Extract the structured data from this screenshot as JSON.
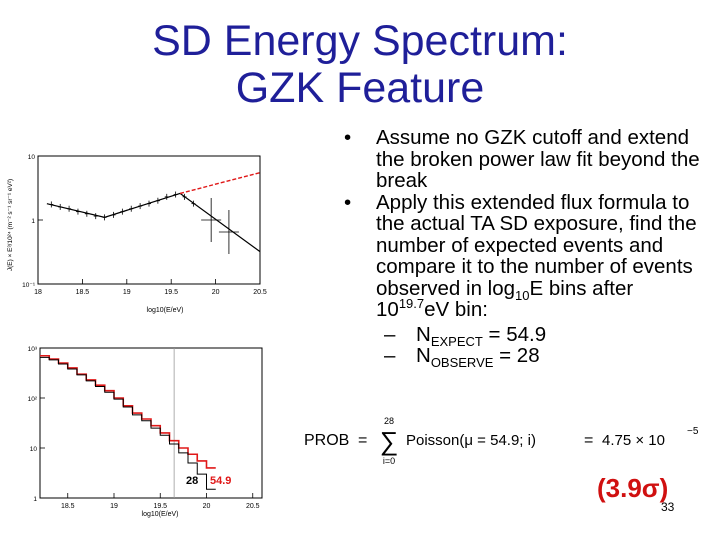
{
  "slide": {
    "title_line1": "SD Energy Spectrum:",
    "title_line2": "GZK Feature",
    "page_number": "33"
  },
  "bullets": {
    "b1": "Assume no GZK cutoff and extend the broken power law fit beyond the break",
    "b2_part1": "Apply this extended flux formula to the actual TA SD exposure, find the number of expected events and compare it to the number of events observed in log",
    "b2_log_sub": "10",
    "b2_part2": "E bins after 10",
    "b2_exp": "19.7",
    "b2_part3": "eV bin:",
    "sub1_label": "N",
    "sub1_sub": "EXPECT",
    "sub1_value": "= 54.9",
    "sub2_label": "N",
    "sub2_sub": "OBSERVE",
    "sub2_value": "= 28"
  },
  "formula": {
    "prob": "PROB",
    "eq1": "=",
    "sum_top": "28",
    "sum_bottom": "i=0",
    "poisson": "Poisson(μ = 54.9; i)",
    "eq2": "=",
    "result": "4.75 × 10",
    "result_exp": "−5"
  },
  "significance": "(3.9σ)",
  "chart_data": [
    {
      "type": "line",
      "xlabel": "log10(E/eV)",
      "ylabel": "J(E) × E³/10²⁴ (m⁻² s⁻¹ sr⁻¹ eV²)",
      "xlim": [
        18,
        20.5
      ],
      "ylim": [
        0.1,
        10
      ],
      "yscale": "log",
      "xticks": [
        "18",
        "18.5",
        "19",
        "19.5",
        "20",
        "20.5"
      ],
      "yticks": [
        "10",
        "1",
        "10⁻¹"
      ],
      "series": [
        {
          "style": "broken power law fit (black)",
          "x": [
            18.1,
            18.75,
            19.6,
            20.5
          ],
          "y": [
            1.8,
            1.1,
            2.6,
            0.32
          ]
        },
        {
          "style": "extension (red dashed)",
          "x": [
            19.6,
            20.5
          ],
          "y": [
            2.6,
            5.5
          ]
        },
        {
          "style": "data points",
          "x": [
            18.15,
            18.25,
            18.35,
            18.45,
            18.55,
            18.65,
            18.75,
            18.85,
            18.95,
            19.05,
            19.15,
            19.25,
            19.35,
            19.45,
            19.55,
            19.65,
            19.75,
            19.95,
            20.15
          ],
          "y": [
            1.75,
            1.6,
            1.5,
            1.35,
            1.25,
            1.15,
            1.1,
            1.2,
            1.35,
            1.5,
            1.65,
            1.8,
            2.0,
            2.3,
            2.5,
            2.3,
            1.8,
            1.0,
            0.65
          ]
        }
      ]
    },
    {
      "type": "line",
      "xlabel": "log10(E/eV)",
      "xlim": [
        18.2,
        20.6
      ],
      "ylim": [
        1,
        1000
      ],
      "yscale": "log",
      "xticks": [
        "18.5",
        "19",
        "19.5",
        "20",
        "20.5"
      ],
      "yticks": [
        "10³",
        "10²",
        "10",
        "1"
      ],
      "annotations": [
        "28",
        "54.9"
      ],
      "series": [
        {
          "style": "expected (red step)",
          "x": [
            18.25,
            18.35,
            18.45,
            18.55,
            18.65,
            18.75,
            18.85,
            18.95,
            19.05,
            19.15,
            19.25,
            19.35,
            19.45,
            19.55,
            19.65,
            19.75,
            19.85,
            19.95,
            20.05
          ],
          "y": [
            700,
            600,
            500,
            400,
            300,
            230,
            180,
            140,
            100,
            70,
            50,
            38,
            28,
            20,
            14,
            10,
            7.5,
            5.5,
            4.0
          ]
        },
        {
          "style": "observed (black step)",
          "x": [
            18.25,
            18.35,
            18.45,
            18.55,
            18.65,
            18.75,
            18.85,
            18.95,
            19.05,
            19.15,
            19.25,
            19.35,
            19.45,
            19.55,
            19.65,
            19.75,
            19.85,
            19.95,
            20.05
          ],
          "y": [
            650,
            580,
            480,
            380,
            290,
            220,
            170,
            130,
            95,
            66,
            46,
            35,
            25,
            18,
            12,
            8,
            5,
            3,
            1.5
          ]
        }
      ],
      "vertical_line_x": 19.65
    }
  ]
}
